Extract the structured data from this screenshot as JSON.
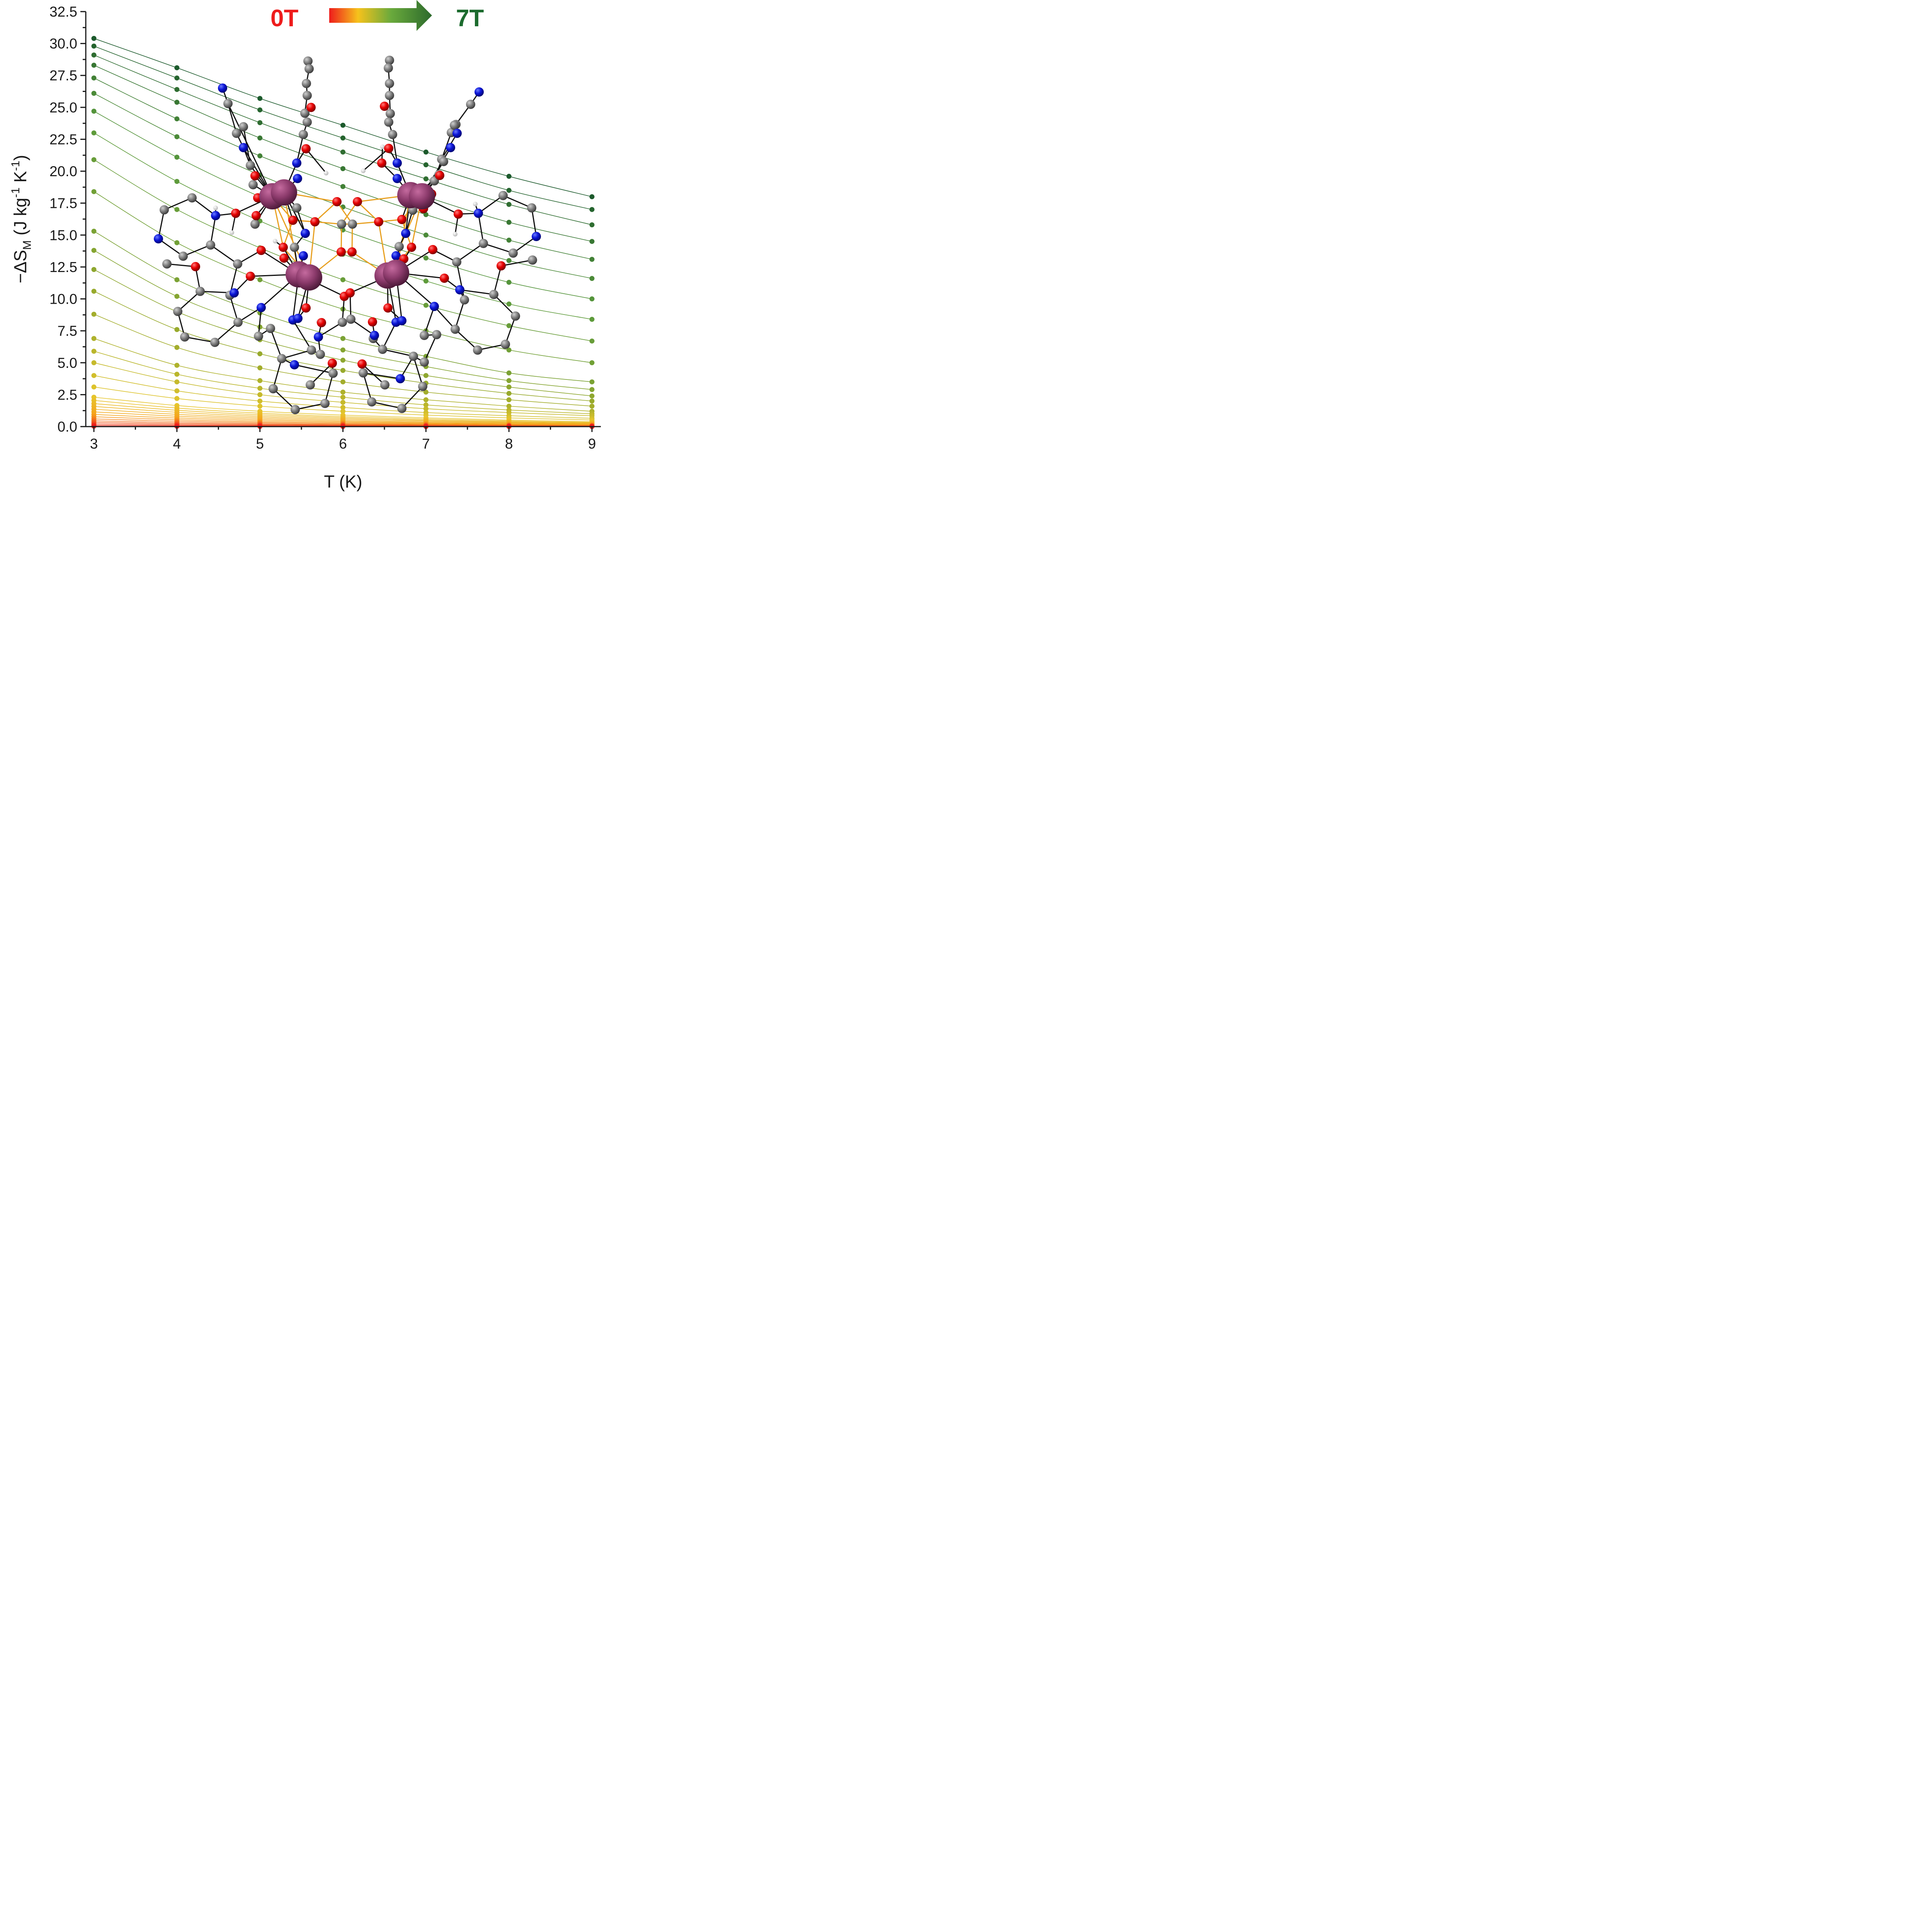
{
  "chart_data": {
    "type": "scatter",
    "xlabel": "T (K)",
    "ylabel": {
      "main": "−ΔS",
      "sub": "M",
      "open": " (J kg",
      "sup1": "-1",
      "mid": " K",
      "sup2": "-1",
      "close": ")"
    },
    "xlim": [
      3,
      9
    ],
    "ylim": [
      0,
      32.5
    ],
    "xticks": [
      "3",
      "4",
      "5",
      "6",
      "7",
      "8",
      "9"
    ],
    "yticks": [
      "0.0",
      "2.5",
      "5.0",
      "7.5",
      "10.0",
      "12.5",
      "15.0",
      "17.5",
      "20.0",
      "22.5",
      "25.0",
      "27.5",
      "30.0",
      "32.5"
    ],
    "grid": false,
    "legend": {
      "start_label": "0T",
      "end_label": "7T",
      "start_color": "#ee1c1c",
      "end_color": "#1c6b2e",
      "placement": "top-center"
    },
    "x": [
      3,
      4,
      5,
      6,
      7,
      8,
      9
    ],
    "series": [
      {
        "values": [
          30.4,
          28.1,
          25.7,
          23.6,
          21.5,
          19.6,
          18.0
        ]
      },
      {
        "values": [
          29.8,
          27.3,
          24.8,
          22.6,
          20.5,
          18.5,
          17.0
        ]
      },
      {
        "values": [
          29.1,
          26.4,
          23.8,
          21.5,
          19.4,
          17.4,
          15.8
        ]
      },
      {
        "values": [
          28.3,
          25.4,
          22.6,
          20.2,
          18.0,
          16.0,
          14.5
        ]
      },
      {
        "values": [
          27.3,
          24.1,
          21.2,
          18.8,
          16.6,
          14.6,
          13.1
        ]
      },
      {
        "values": [
          26.1,
          22.7,
          19.7,
          17.2,
          15.0,
          13.0,
          11.6
        ]
      },
      {
        "values": [
          24.7,
          21.1,
          18.0,
          15.4,
          13.2,
          11.3,
          10.0
        ]
      },
      {
        "values": [
          23.0,
          19.2,
          16.1,
          13.5,
          11.4,
          9.6,
          8.4
        ]
      },
      {
        "values": [
          20.9,
          17.0,
          14.0,
          11.5,
          9.5,
          7.9,
          6.7
        ]
      },
      {
        "values": [
          18.4,
          14.4,
          11.5,
          9.2,
          7.5,
          6.0,
          5.0
        ]
      },
      {
        "values": [
          15.3,
          11.5,
          8.9,
          6.9,
          5.5,
          4.2,
          3.5
        ]
      },
      {
        "values": [
          13.8,
          10.2,
          7.8,
          6.0,
          4.7,
          3.6,
          2.9
        ]
      },
      {
        "values": [
          12.3,
          9.0,
          6.8,
          5.2,
          4.0,
          3.1,
          2.4
        ]
      },
      {
        "values": [
          10.6,
          7.6,
          5.7,
          4.4,
          3.4,
          2.6,
          2.0
        ]
      },
      {
        "values": [
          8.8,
          6.2,
          4.6,
          3.5,
          2.7,
          2.1,
          1.6
        ]
      },
      {
        "values": [
          6.9,
          4.8,
          3.6,
          2.7,
          2.1,
          1.6,
          1.2
        ]
      },
      {
        "values": [
          5.9,
          4.1,
          3.0,
          2.3,
          1.7,
          1.3,
          1.0
        ]
      },
      {
        "values": [
          5.0,
          3.5,
          2.5,
          1.9,
          1.4,
          1.1,
          0.85
        ]
      },
      {
        "values": [
          4.0,
          2.8,
          2.0,
          1.5,
          1.1,
          0.85,
          0.65
        ]
      },
      {
        "values": [
          3.1,
          2.2,
          1.6,
          1.2,
          0.9,
          0.68,
          0.52
        ]
      },
      {
        "values": [
          2.3,
          1.65,
          1.2,
          0.9,
          0.68,
          0.51,
          0.39
        ]
      },
      {
        "values": [
          2.05,
          1.45,
          1.05,
          0.78,
          0.58,
          0.44,
          0.33
        ]
      },
      {
        "values": [
          1.8,
          1.28,
          0.92,
          0.68,
          0.5,
          0.38,
          0.29
        ]
      },
      {
        "values": [
          1.58,
          1.12,
          0.8,
          0.59,
          0.44,
          0.33,
          0.25
        ]
      },
      {
        "values": [
          1.36,
          0.96,
          0.69,
          0.5,
          0.37,
          0.28,
          0.21
        ]
      },
      {
        "values": [
          1.15,
          0.81,
          0.58,
          0.42,
          0.31,
          0.23,
          0.18
        ]
      },
      {
        "values": [
          0.95,
          0.67,
          0.48,
          0.35,
          0.26,
          0.19,
          0.15
        ]
      },
      {
        "values": [
          0.77,
          0.54,
          0.38,
          0.28,
          0.21,
          0.15,
          0.12
        ]
      },
      {
        "values": [
          0.6,
          0.42,
          0.3,
          0.22,
          0.16,
          0.12,
          0.09
        ]
      },
      {
        "values": [
          0.45,
          0.31,
          0.22,
          0.16,
          0.12,
          0.09,
          0.07
        ]
      },
      {
        "values": [
          0.32,
          0.22,
          0.16,
          0.12,
          0.08,
          0.06,
          0.05
        ]
      },
      {
        "values": [
          0.2,
          0.14,
          0.1,
          0.07,
          0.05,
          0.04,
          0.03
        ]
      },
      {
        "values": [
          0.1,
          0.07,
          0.05,
          0.04,
          0.03,
          0.02,
          0.015
        ]
      },
      {
        "values": [
          0.03,
          0.02,
          0.015,
          0.01,
          0.008,
          0.006,
          0.005
        ]
      }
    ]
  },
  "colors": {
    "ramp": [
      "#ee1c1c",
      "#f6a21c",
      "#e6c62c",
      "#9aaa2c",
      "#5a9a3c",
      "#1c5a2c"
    ],
    "axis": "#1a1a1a",
    "atom_metal": "#8b3a6b",
    "atom_oxygen": "#e60000",
    "atom_nitrogen": "#0a14d6",
    "atom_carbon": "#7a7a7a",
    "atom_hydrogen": "#f2f2f2",
    "bond_metal": "#e8a020",
    "bond": "#111111"
  },
  "overlay_image": {
    "icon": "molecular-structure-icon"
  }
}
